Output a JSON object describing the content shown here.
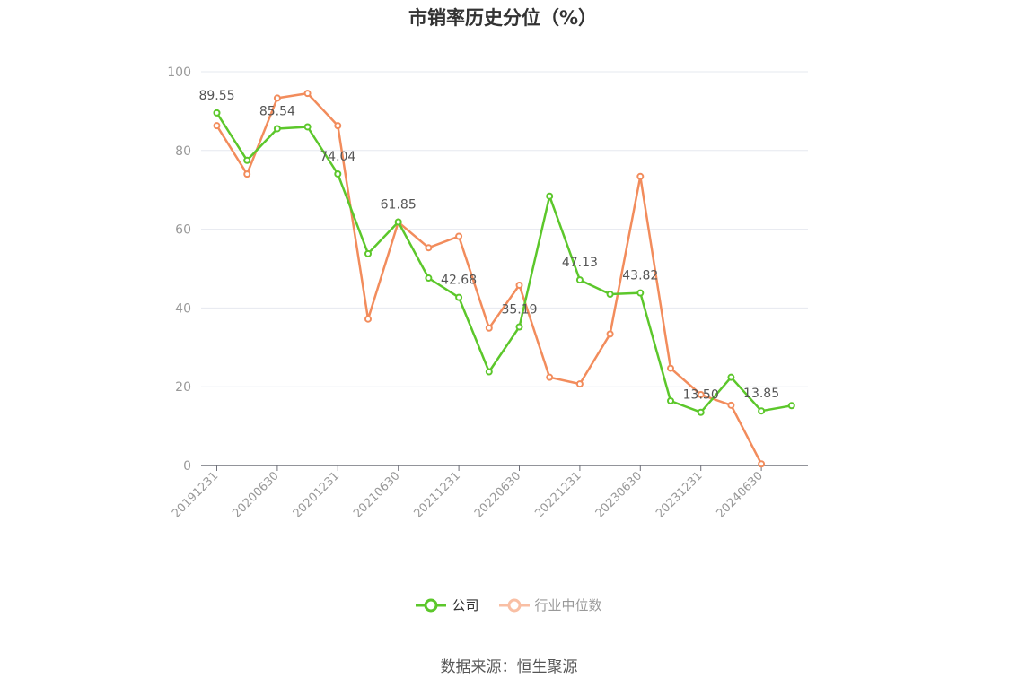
{
  "title": "市销率历史分位（%）",
  "source": "数据来源：恒生聚源",
  "legend": {
    "company": "公司",
    "industry": "行业中位数"
  },
  "colors": {
    "company": "#5cc72b",
    "industry": "#f28c5c",
    "grid": "#e6e8ef",
    "axis": "#999999"
  },
  "chart_data": {
    "type": "line",
    "title": "市销率历史分位（%）",
    "xlabel": "",
    "ylabel": "",
    "ylim": [
      0,
      100
    ],
    "yticks": [
      0,
      20,
      40,
      60,
      80,
      100
    ],
    "grid": true,
    "legend_position": "bottom",
    "x": [
      "20191231",
      "20200331",
      "20200630",
      "20200930",
      "20201231",
      "20210331",
      "20210630",
      "20210930",
      "20211231",
      "20220331",
      "20220630",
      "20220930",
      "20221231",
      "20230331",
      "20230630",
      "20230930",
      "20231231",
      "20240331",
      "20240630",
      "20240930"
    ],
    "x_tick_labels": [
      "20191231",
      "20200630",
      "20201231",
      "20210630",
      "20211231",
      "20220630",
      "20221231",
      "20230630",
      "20231231",
      "20240630"
    ],
    "series": [
      {
        "name": "公司",
        "values": [
          89.55,
          77.5,
          85.54,
          86.0,
          74.04,
          53.8,
          61.85,
          47.6,
          42.68,
          23.8,
          35.19,
          68.4,
          47.13,
          43.5,
          43.82,
          16.4,
          13.5,
          22.4,
          13.85,
          15.2
        ],
        "labels": {
          "0": "89.55",
          "2": "85.54",
          "4": "74.04",
          "6": "61.85",
          "8": "42.68",
          "10": "35.19",
          "12": "47.13",
          "14": "43.82",
          "16": "13.50",
          "18": "13.85"
        }
      },
      {
        "name": "行业中位数",
        "values": [
          86.3,
          74.0,
          93.3,
          94.5,
          86.3,
          37.2,
          61.8,
          55.3,
          58.2,
          34.9,
          45.8,
          22.4,
          20.7,
          33.4,
          73.4,
          24.7,
          18.0,
          15.3,
          0.4,
          null
        ]
      }
    ]
  }
}
